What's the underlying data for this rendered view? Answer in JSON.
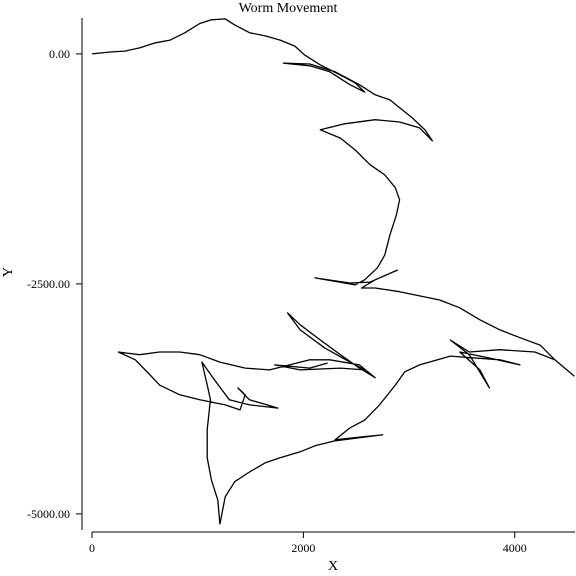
{
  "chart_data": {
    "type": "line",
    "title": "Worm Movement",
    "x_label": "X",
    "y_label": "Y",
    "color": "#000000",
    "x": [
      0,
      170,
      310,
      450,
      600,
      740,
      880,
      1020,
      1130,
      1260,
      1350,
      1490,
      1640,
      1780,
      1920,
      2010,
      2160,
      2350,
      2490,
      2580,
      2440,
      2250,
      2060,
      1810,
      2060,
      2300,
      2530,
      2680,
      2820,
      2910,
      3030,
      3150,
      3220,
      3100,
      2910,
      2680,
      2390,
      2160,
      2350,
      2490,
      2630,
      2770,
      2870,
      2910,
      2880,
      2820,
      2770,
      2700,
      2580,
      2490,
      2110,
      2440,
      2630,
      2890,
      2680,
      2550,
      2680,
      2910,
      3100,
      3290,
      3480,
      3670,
      3860,
      4050,
      4240,
      4380,
      4560,
      4380,
      4190,
      3860,
      3570,
      3390,
      3570,
      3760,
      3670,
      3480,
      3760,
      4050,
      3860,
      3390,
      3100,
      2960,
      2870,
      2720,
      2580,
      2440,
      2300,
      2530,
      2750,
      2300,
      2110,
      1970,
      1780,
      1640,
      1490,
      1350,
      1260,
      1210,
      1190,
      1130,
      1090,
      1090,
      1120,
      1100,
      1040,
      1160,
      1300,
      1490,
      1760,
      1490,
      1380,
      1450,
      1400,
      1260,
      1020,
      830,
      640,
      550,
      410,
      250,
      450,
      640,
      830,
      1020,
      1210,
      1450,
      1680,
      1870,
      2060,
      2250,
      2530,
      2680,
      2530,
      2350,
      2160,
      1970,
      1850,
      1970,
      2200,
      2440,
      2580,
      2350,
      1970,
      1730,
      2060,
      2230
    ],
    "values": [
      0,
      20,
      30,
      65,
      120,
      150,
      230,
      330,
      370,
      380,
      315,
      230,
      195,
      150,
      85,
      -10,
      -120,
      -230,
      -315,
      -415,
      -335,
      -195,
      -130,
      -100,
      -110,
      -195,
      -335,
      -445,
      -500,
      -585,
      -695,
      -825,
      -945,
      -805,
      -740,
      -715,
      -760,
      -825,
      -915,
      -1045,
      -1205,
      -1315,
      -1455,
      -1585,
      -1750,
      -1965,
      -2185,
      -2325,
      -2455,
      -2510,
      -2435,
      -2490,
      -2480,
      -2350,
      -2455,
      -2545,
      -2545,
      -2585,
      -2630,
      -2675,
      -2760,
      -2890,
      -3000,
      -3085,
      -3165,
      -3325,
      -3500,
      -3325,
      -3240,
      -3215,
      -3240,
      -3110,
      -3270,
      -3630,
      -3435,
      -3240,
      -3305,
      -3380,
      -3325,
      -3285,
      -3380,
      -3455,
      -3600,
      -3815,
      -3980,
      -4065,
      -4195,
      -4165,
      -4140,
      -4205,
      -4260,
      -4325,
      -4390,
      -4445,
      -4545,
      -4650,
      -4815,
      -5110,
      -4850,
      -4630,
      -4390,
      -4085,
      -3760,
      -3650,
      -3350,
      -3545,
      -3760,
      -3815,
      -3850,
      -3760,
      -3630,
      -3705,
      -3870,
      -3815,
      -3760,
      -3705,
      -3600,
      -3490,
      -3325,
      -3240,
      -3270,
      -3240,
      -3240,
      -3270,
      -3350,
      -3415,
      -3435,
      -3380,
      -3325,
      -3325,
      -3380,
      -3520,
      -3415,
      -3270,
      -3110,
      -2945,
      -2815,
      -3000,
      -3195,
      -3350,
      -3435,
      -3415,
      -3435,
      -3380,
      -3415,
      -3360
    ],
    "xlim": [
      0,
      4570
    ],
    "xticks": [
      0,
      2000,
      4000
    ],
    "ylim": [
      -5175,
      390
    ],
    "yticks": [
      {
        "value": 0,
        "label": "0.00"
      },
      {
        "value": -2500,
        "label": "-2500.00"
      },
      {
        "value": -5000,
        "label": "-5000.00"
      }
    ]
  }
}
